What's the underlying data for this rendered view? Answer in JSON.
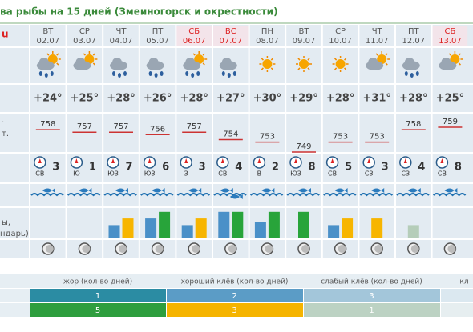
{
  "header": {
    "title": "ва рыбы на 15 дней (Змеиногорск и окрестности)"
  },
  "left_labels": {
    "top": "u",
    "pressure_1": ".",
    "pressure_2": "т.",
    "bars_1": "ы,",
    "bars_2": "ндарь)"
  },
  "days": [
    {
      "dow": "ВТ",
      "date": "02.07",
      "weekend": false,
      "sun": true,
      "cloud": true,
      "rain": true,
      "temp": "+24°",
      "pressure": 758,
      "wind_dir": "СВ",
      "wind": 3,
      "fish": 1,
      "bars": []
    },
    {
      "dow": "СР",
      "date": "03.07",
      "weekend": false,
      "sun": true,
      "cloud": true,
      "rain": false,
      "temp": "+25°",
      "pressure": 757,
      "wind_dir": "Ю",
      "wind": 1,
      "fish": 1,
      "bars": []
    },
    {
      "dow": "ЧТ",
      "date": "04.07",
      "weekend": false,
      "sun": false,
      "cloud": true,
      "rain": true,
      "temp": "+28°",
      "pressure": 757,
      "wind_dir": "ЮЗ",
      "wind": 7,
      "fish": 1,
      "bars": [
        {
          "color": "#4a90c8",
          "value": 2
        },
        {
          "color": "#f7b500",
          "value": 3
        }
      ]
    },
    {
      "dow": "ПТ",
      "date": "05.07",
      "weekend": false,
      "sun": false,
      "cloud": true,
      "rain": true,
      "temp": "+26°",
      "pressure": 756,
      "wind_dir": "ЮЗ",
      "wind": 6,
      "fish": 1,
      "bars": [
        {
          "color": "#4a90c8",
          "value": 3
        },
        {
          "color": "#28a43a",
          "value": 4
        }
      ]
    },
    {
      "dow": "СБ",
      "date": "06.07",
      "weekend": true,
      "sun": true,
      "cloud": true,
      "rain": true,
      "temp": "+28°",
      "pressure": 757,
      "wind_dir": "З",
      "wind": 3,
      "fish": 1,
      "bars": [
        {
          "color": "#4a90c8",
          "value": 2
        },
        {
          "color": "#f7b500",
          "value": 3
        }
      ]
    },
    {
      "dow": "ВС",
      "date": "07.07",
      "weekend": true,
      "sun": false,
      "cloud": true,
      "rain": true,
      "temp": "+27°",
      "pressure": 754,
      "wind_dir": "СВ",
      "wind": 4,
      "fish": 2,
      "bars": [
        {
          "color": "#4a90c8",
          "value": 4
        },
        {
          "color": "#28a43a",
          "value": 4
        }
      ]
    },
    {
      "dow": "ПН",
      "date": "08.07",
      "weekend": false,
      "sun": true,
      "cloud": false,
      "rain": false,
      "temp": "+30°",
      "pressure": 753,
      "wind_dir": "В",
      "wind": 2,
      "fish": 1,
      "bars": [
        {
          "color": "#4a90c8",
          "value": 2.5
        },
        {
          "color": "#28a43a",
          "value": 4
        }
      ]
    },
    {
      "dow": "ВТ",
      "date": "09.07",
      "weekend": false,
      "sun": true,
      "cloud": false,
      "rain": false,
      "temp": "+29°",
      "pressure": 749,
      "wind_dir": "ЮЗ",
      "wind": 8,
      "fish": 1,
      "bars": [
        {
          "color": "#28a43a",
          "value": 4
        }
      ]
    },
    {
      "dow": "СР",
      "date": "10.07",
      "weekend": false,
      "sun": true,
      "cloud": false,
      "rain": false,
      "temp": "+28°",
      "pressure": 753,
      "wind_dir": "СВ",
      "wind": 5,
      "fish": 1,
      "bars": [
        {
          "color": "#4a90c8",
          "value": 2
        },
        {
          "color": "#f7b500",
          "value": 3
        }
      ]
    },
    {
      "dow": "ЧТ",
      "date": "11.07",
      "weekend": false,
      "sun": true,
      "cloud": true,
      "rain": false,
      "temp": "+31°",
      "pressure": 753,
      "wind_dir": "СЗ",
      "wind": 3,
      "fish": 1,
      "bars": [
        {
          "color": "#f7b500",
          "value": 3
        }
      ]
    },
    {
      "dow": "ПТ",
      "date": "12.07",
      "weekend": false,
      "sun": false,
      "cloud": true,
      "rain": true,
      "temp": "+28°",
      "pressure": 758,
      "wind_dir": "СЗ",
      "wind": 4,
      "fish": 1,
      "bars": [
        {
          "color": "#b5cdb9",
          "value": 2
        }
      ]
    },
    {
      "dow": "СБ",
      "date": "13.07",
      "weekend": true,
      "sun": true,
      "cloud": true,
      "rain": false,
      "temp": "+25°",
      "pressure": 759,
      "wind_dir": "СВ",
      "wind": 8,
      "fish": 1,
      "bars": []
    }
  ],
  "legend": {
    "headers": [
      "жор (кол-во дней)",
      "хороший клёв (кол-во дней)",
      "слабый клёв (кол-во дней)",
      "кл"
    ],
    "rows": [
      {
        "cells": [
          "1",
          "2",
          "3",
          ""
        ],
        "colors": [
          "#2b8ca3",
          "#5b9cc6",
          "#a3c6da",
          "#dbe8f0"
        ]
      },
      {
        "cells": [
          "5",
          "3",
          "1",
          ""
        ],
        "colors": [
          "#2e9e3e",
          "#f5b400",
          "#bcd2c3",
          "#e6eef0"
        ]
      }
    ]
  }
}
